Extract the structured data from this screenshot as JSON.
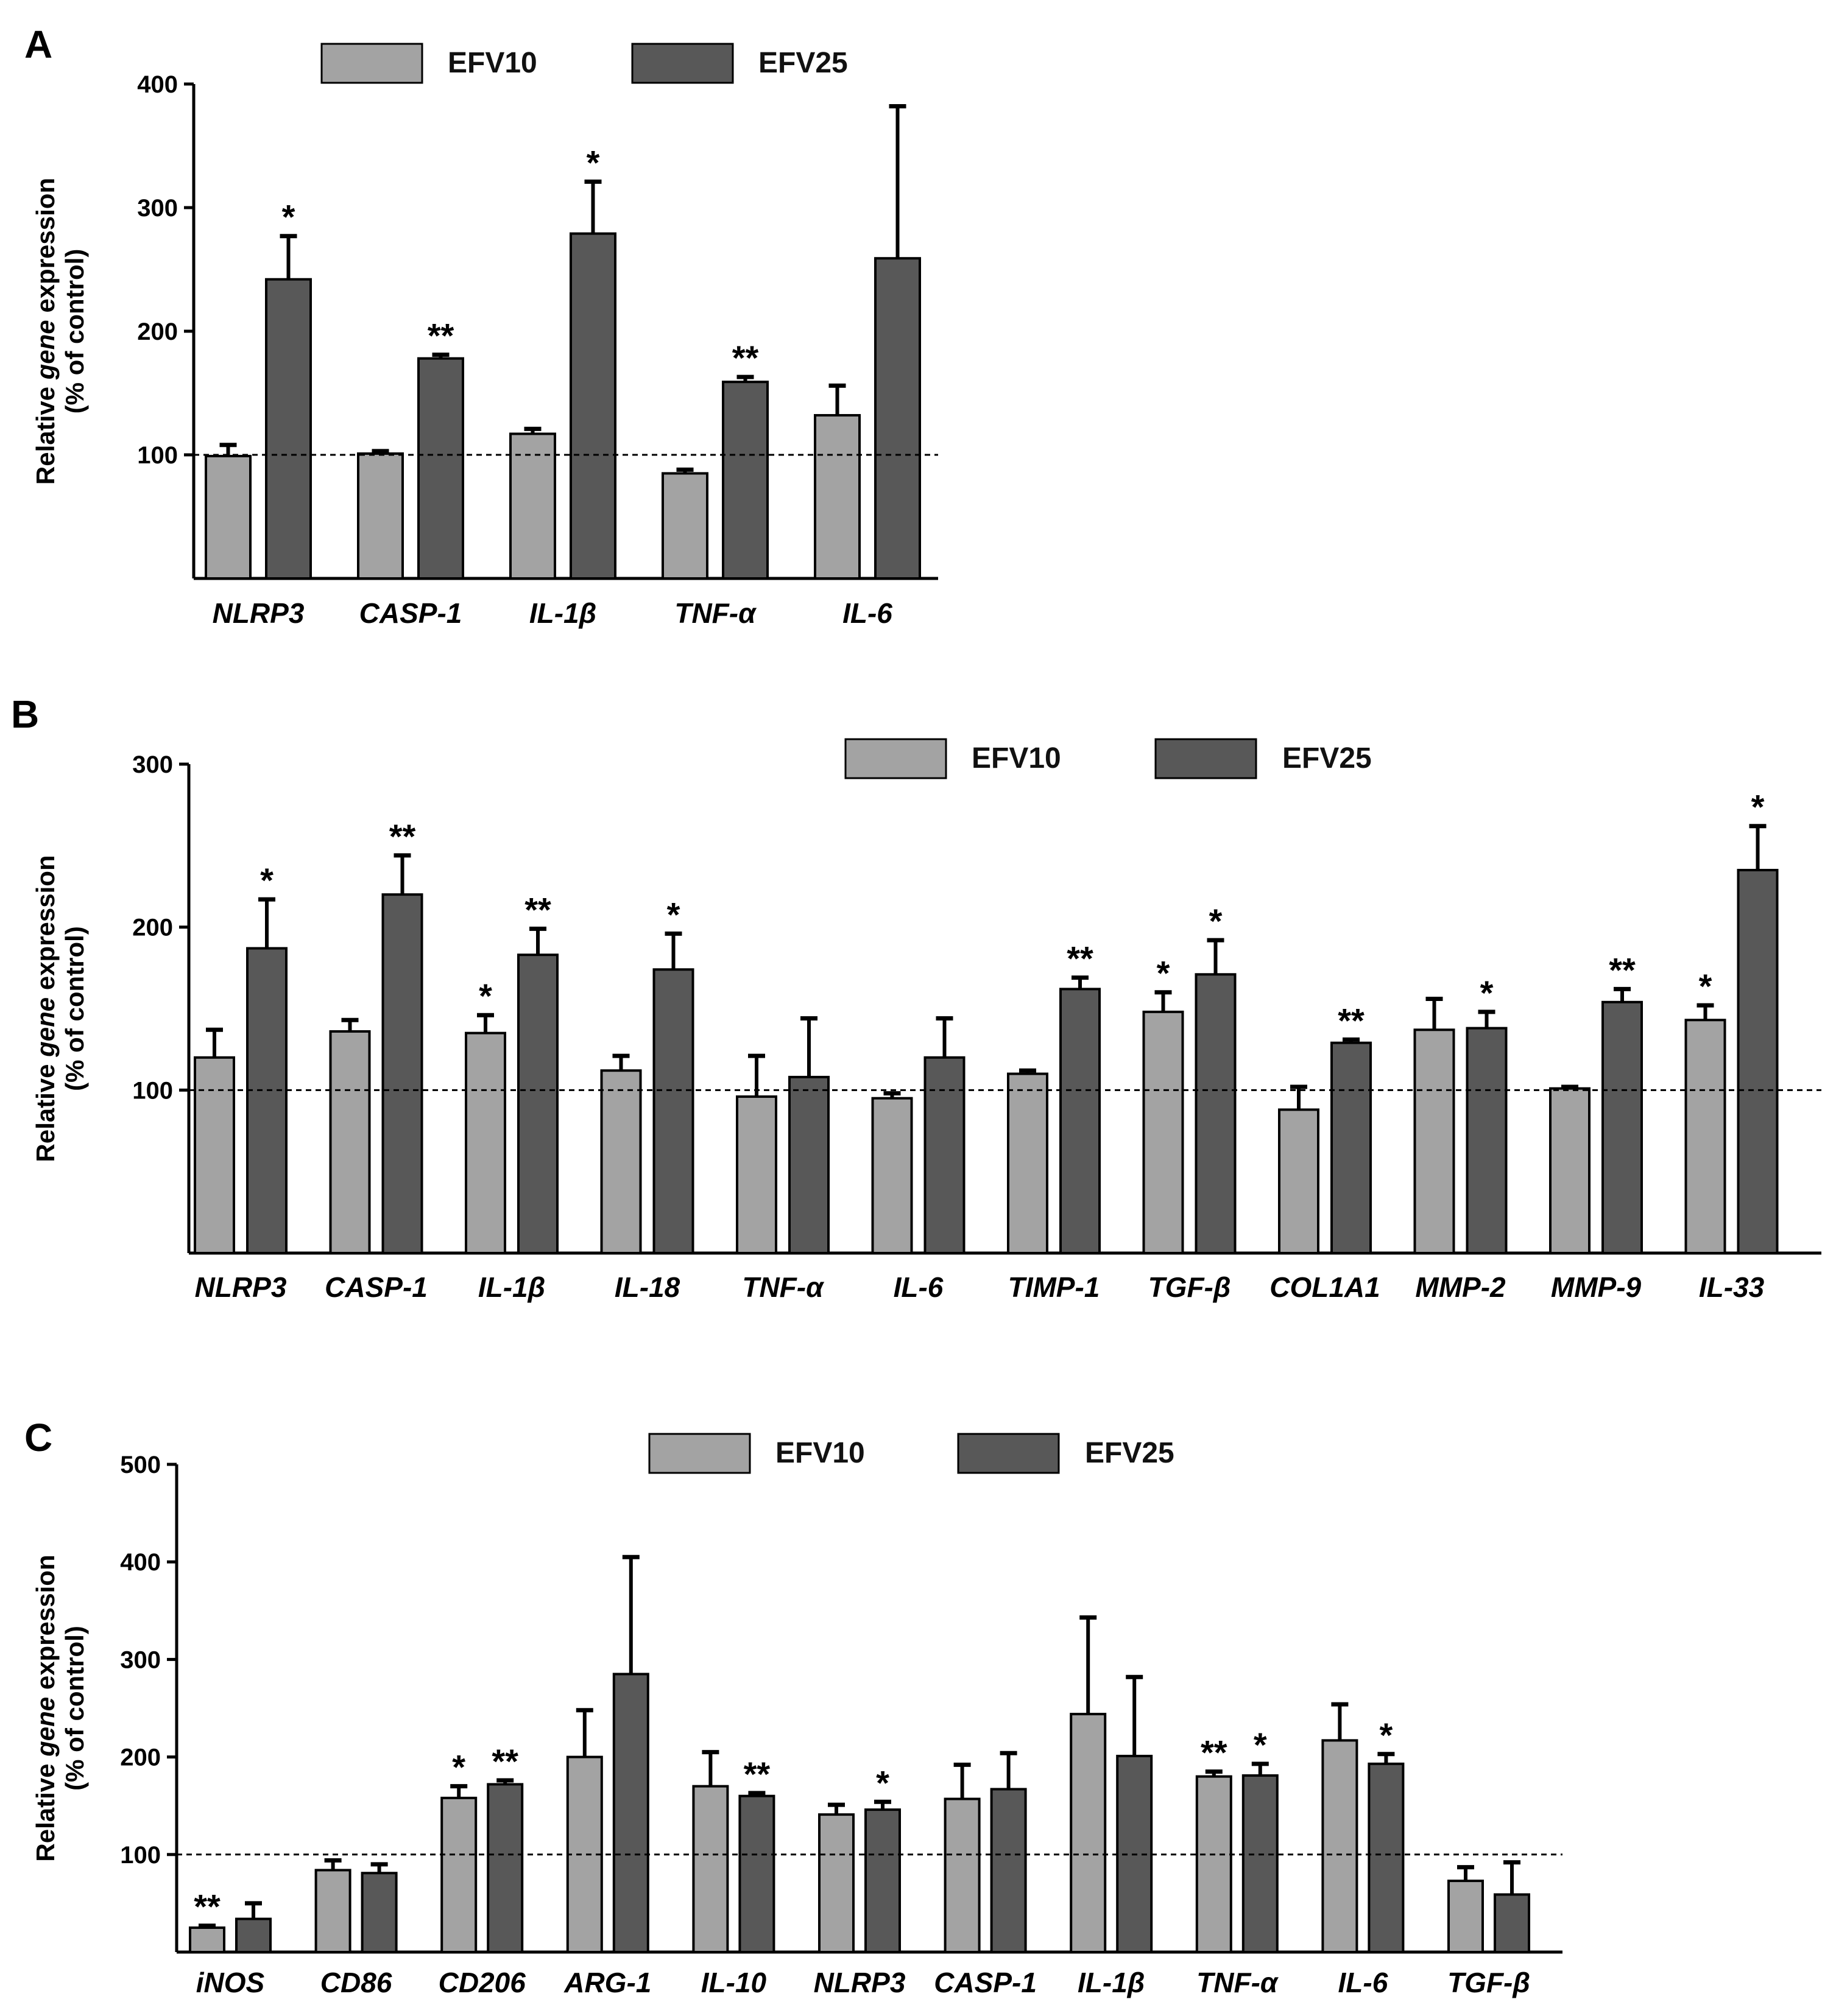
{
  "chart_data": [
    {
      "panel": "A",
      "type": "bar",
      "ylabel": "Relative gene expression (% of control)",
      "ylabel_parts": [
        "Relative ",
        "gene",
        " expression"
      ],
      "ylabel_line2": "(% of control)",
      "ylim": [
        0,
        400
      ],
      "yticks": [
        100,
        200,
        300,
        400
      ],
      "reference_line": 100,
      "legend": [
        "EFV10",
        "EFV25"
      ],
      "categories": [
        "NLRP3",
        "CASP-1",
        "IL-1β",
        "TNF-α",
        "IL-6"
      ],
      "series": [
        {
          "name": "EFV10",
          "color": "#a3a3a3",
          "values": [
            99,
            101,
            117,
            85,
            132
          ],
          "errors": [
            9,
            2,
            4,
            3,
            24
          ],
          "sig": [
            "",
            "",
            "",
            "",
            ""
          ]
        },
        {
          "name": "EFV25",
          "color": "#585858",
          "values": [
            242,
            178,
            279,
            159,
            259
          ],
          "errors": [
            35,
            3,
            42,
            4,
            123
          ],
          "sig": [
            "*",
            "**",
            "*",
            "**",
            ""
          ]
        }
      ]
    },
    {
      "panel": "B",
      "type": "bar",
      "ylabel": "Relative gene expression (% of control)",
      "ylabel_parts": [
        "Relative ",
        "gene",
        " expression"
      ],
      "ylabel_line2": "(% of control)",
      "ylim": [
        0,
        300
      ],
      "yticks": [
        100,
        200,
        300
      ],
      "reference_line": 100,
      "legend": [
        "EFV10",
        "EFV25"
      ],
      "categories": [
        "NLRP3",
        "CASP-1",
        "IL-1β",
        "IL-18",
        "TNF-α",
        "IL-6",
        "TIMP-1",
        "TGF-β",
        "COL1A1",
        "MMP-2",
        "MMP-9",
        "IL-33"
      ],
      "series": [
        {
          "name": "EFV10",
          "color": "#a3a3a3",
          "values": [
            120,
            136,
            135,
            112,
            96,
            95,
            110,
            148,
            88,
            137,
            101,
            143
          ],
          "errors": [
            17,
            7,
            11,
            9,
            25,
            3,
            2,
            12,
            14,
            19,
            1,
            9
          ],
          "sig": [
            "",
            "",
            "*",
            "",
            "",
            "",
            "",
            "*",
            "",
            "",
            "",
            "*"
          ]
        },
        {
          "name": "EFV25",
          "color": "#585858",
          "values": [
            187,
            220,
            183,
            174,
            108,
            120,
            162,
            171,
            129,
            138,
            154,
            235
          ],
          "errors": [
            30,
            24,
            16,
            22,
            36,
            24,
            7,
            21,
            2,
            10,
            8,
            27
          ],
          "sig": [
            "*",
            "**",
            "**",
            "*",
            "",
            "",
            "**",
            "*",
            "**",
            "*",
            "**",
            "*"
          ]
        }
      ]
    },
    {
      "panel": "C",
      "type": "bar",
      "ylabel": "Relative gene expression (% of control)",
      "ylabel_parts": [
        "Relative ",
        "gene",
        " expression"
      ],
      "ylabel_line2": "(% of control)",
      "ylim": [
        0,
        500
      ],
      "yticks": [
        100,
        200,
        300,
        400,
        500
      ],
      "reference_line": 100,
      "legend": [
        "EFV10",
        "EFV25"
      ],
      "categories": [
        "iNOS",
        "CD86",
        "CD206",
        "ARG-1",
        "IL-10",
        "NLRP3",
        "CASP-1",
        "IL-1β",
        "TNF-α",
        "IL-6",
        "TGF-β"
      ],
      "series": [
        {
          "name": "EFV10",
          "color": "#a3a3a3",
          "values": [
            25,
            84,
            158,
            200,
            170,
            141,
            157,
            244,
            180,
            217,
            73
          ],
          "errors": [
            2,
            10,
            12,
            48,
            35,
            10,
            35,
            99,
            5,
            37,
            14
          ],
          "sig": [
            "**",
            "",
            "*",
            "",
            "",
            "",
            "",
            "",
            "**",
            "",
            ""
          ]
        },
        {
          "name": "EFV25",
          "color": "#585858",
          "values": [
            34,
            81,
            172,
            285,
            160,
            146,
            167,
            201,
            181,
            193,
            59
          ],
          "errors": [
            16,
            9,
            4,
            120,
            3,
            8,
            37,
            81,
            12,
            10,
            33
          ],
          "sig": [
            "",
            "",
            "**",
            "",
            "**",
            "*",
            "",
            "",
            "*",
            "*",
            ""
          ]
        }
      ]
    }
  ]
}
